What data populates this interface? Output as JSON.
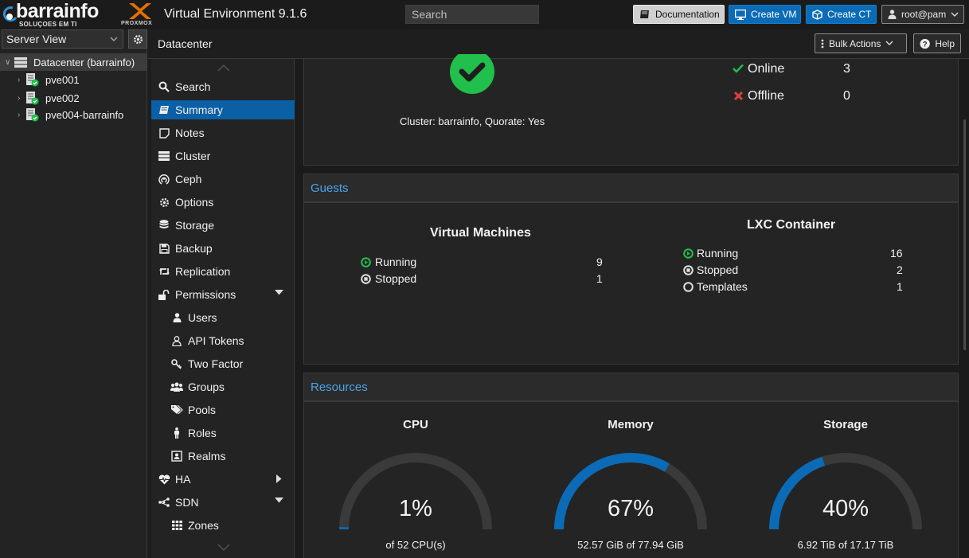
{
  "brand": {
    "name": "barrainfo",
    "tagline": "SOLUÇOES EM TI",
    "logo_text": "PROXMOX"
  },
  "header": {
    "title": "Virtual Environment 9.1.6",
    "search_placeholder": "Search",
    "buttons": {
      "documentation": "Documentation",
      "create_vm": "Create VM",
      "create_ct": "Create CT",
      "user": "root@pam"
    }
  },
  "tree": {
    "view": "Server View",
    "datacenter": "Datacenter (barrainfo)",
    "nodes": [
      "pve001",
      "pve002",
      "pve004-barrainfo"
    ]
  },
  "content_header": {
    "breadcrumb": "Datacenter",
    "bulk_actions": "Bulk Actions",
    "help": "Help"
  },
  "nav": {
    "items": [
      {
        "label": "Search",
        "icon": "search-icon"
      },
      {
        "label": "Summary",
        "icon": "book-icon"
      },
      {
        "label": "Notes",
        "icon": "note-icon"
      },
      {
        "label": "Cluster",
        "icon": "server-icon"
      },
      {
        "label": "Ceph",
        "icon": "ceph-icon"
      },
      {
        "label": "Options",
        "icon": "gear-icon"
      },
      {
        "label": "Storage",
        "icon": "database-icon"
      },
      {
        "label": "Backup",
        "icon": "floppy-icon"
      },
      {
        "label": "Replication",
        "icon": "retweet-icon"
      },
      {
        "label": "Permissions",
        "icon": "unlock-icon"
      },
      {
        "label": "Users",
        "icon": "user-icon"
      },
      {
        "label": "API Tokens",
        "icon": "user-outline-icon"
      },
      {
        "label": "Two Factor",
        "icon": "key-icon"
      },
      {
        "label": "Groups",
        "icon": "users-icon"
      },
      {
        "label": "Pools",
        "icon": "tags-icon"
      },
      {
        "label": "Roles",
        "icon": "male-icon"
      },
      {
        "label": "Realms",
        "icon": "id-card-icon"
      },
      {
        "label": "HA",
        "icon": "heartbeat-icon"
      },
      {
        "label": "SDN",
        "icon": "sdn-icon"
      },
      {
        "label": "Zones",
        "icon": "grid-icon"
      }
    ]
  },
  "health": {
    "cluster_text": "Cluster: barrainfo, Quorate: Yes",
    "online_label": "Online",
    "online_count": "3",
    "offline_label": "Offline",
    "offline_count": "0"
  },
  "guests": {
    "title": "Guests",
    "vm": {
      "title": "Virtual Machines",
      "running_label": "Running",
      "running": "9",
      "stopped_label": "Stopped",
      "stopped": "1"
    },
    "lxc": {
      "title": "LXC Container",
      "running_label": "Running",
      "running": "16",
      "stopped_label": "Stopped",
      "stopped": "2",
      "templates_label": "Templates",
      "templates": "1"
    }
  },
  "resources": {
    "title": "Resources",
    "gauges": [
      {
        "title": "CPU",
        "percent_text": "1%",
        "fraction": 0.01,
        "detail": "of 52 CPU(s)"
      },
      {
        "title": "Memory",
        "percent_text": "67%",
        "fraction": 0.67,
        "detail": "52.57 GiB of 77.94 GiB"
      },
      {
        "title": "Storage",
        "percent_text": "40%",
        "fraction": 0.4,
        "detail": "6.92 TiB of 17.17 TiB"
      }
    ]
  },
  "colors": {
    "accent": "#0b6bb6",
    "ok": "#21bf4b",
    "error": "#e0403d",
    "link": "#4aa3e8"
  }
}
